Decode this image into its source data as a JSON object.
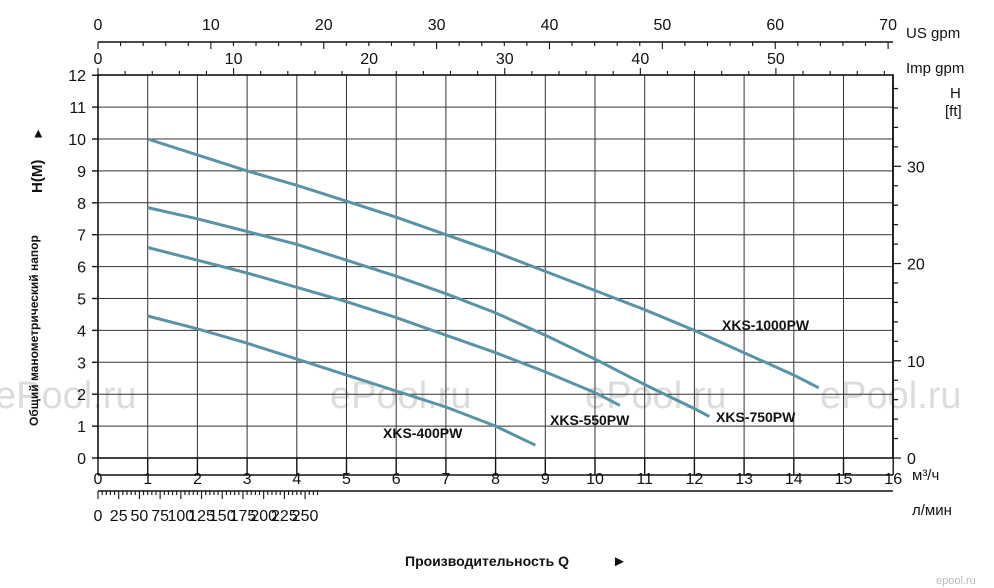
{
  "watermark": "ePool.ru",
  "brand_corner": "epool.ru",
  "chart_data": {
    "type": "line",
    "xlabel": "Производительность Q",
    "ylabel": "Общий манометрический напор",
    "ylabel_unit": "H(M)",
    "xlim": [
      0,
      16
    ],
    "ylim": [
      0,
      12
    ],
    "grid": true,
    "axes": {
      "x_main": {
        "unit": "м³/ч",
        "ticks": [
          0,
          1,
          2,
          3,
          4,
          5,
          6,
          7,
          8,
          9,
          10,
          11,
          12,
          13,
          14,
          15,
          16
        ]
      },
      "x_lmin": {
        "unit": "л/мин",
        "ticks": [
          0,
          25,
          50,
          75,
          100,
          125,
          150,
          175,
          200,
          225,
          250
        ]
      },
      "x_usgpm": {
        "unit": "US gpm",
        "ticks": [
          0,
          10,
          20,
          30,
          40,
          50,
          60,
          70
        ]
      },
      "x_impgpm": {
        "unit": "Imp gpm",
        "ticks": [
          0,
          10,
          20,
          30,
          40,
          50
        ]
      },
      "y_main": {
        "unit": "H(M)",
        "ticks": [
          0,
          1,
          2,
          3,
          4,
          5,
          6,
          7,
          8,
          9,
          10,
          11,
          12
        ]
      },
      "y_ft": {
        "unit_line1": "H",
        "unit_line2": "[ft]",
        "ticks": [
          0,
          10,
          20,
          30
        ]
      }
    },
    "series": [
      {
        "name": "XKS-400PW",
        "x": [
          1,
          2,
          3,
          4,
          5,
          6,
          7,
          8,
          8.8
        ],
        "y": [
          4.45,
          4.05,
          3.6,
          3.1,
          2.6,
          2.1,
          1.6,
          1.0,
          0.4
        ]
      },
      {
        "name": "XKS-550PW",
        "x": [
          1,
          2,
          3,
          4,
          5,
          6,
          7,
          8,
          9,
          10,
          10.5
        ],
        "y": [
          6.6,
          6.2,
          5.8,
          5.35,
          4.9,
          4.4,
          3.85,
          3.3,
          2.7,
          2.05,
          1.65
        ]
      },
      {
        "name": "XKS-750PW",
        "x": [
          1,
          2,
          3,
          4,
          5,
          6,
          7,
          8,
          9,
          10,
          11,
          12,
          12.3
        ],
        "y": [
          7.85,
          7.5,
          7.1,
          6.7,
          6.2,
          5.7,
          5.15,
          4.55,
          3.85,
          3.1,
          2.3,
          1.55,
          1.3
        ]
      },
      {
        "name": "XKS-1000PW",
        "x": [
          1,
          2,
          3,
          4,
          5,
          6,
          7,
          8,
          9,
          10,
          11,
          12,
          13,
          14,
          14.5
        ],
        "y": [
          10.0,
          9.5,
          9.0,
          8.55,
          8.05,
          7.55,
          7.0,
          6.45,
          5.85,
          5.25,
          4.65,
          4.0,
          3.3,
          2.6,
          2.2
        ]
      }
    ]
  }
}
